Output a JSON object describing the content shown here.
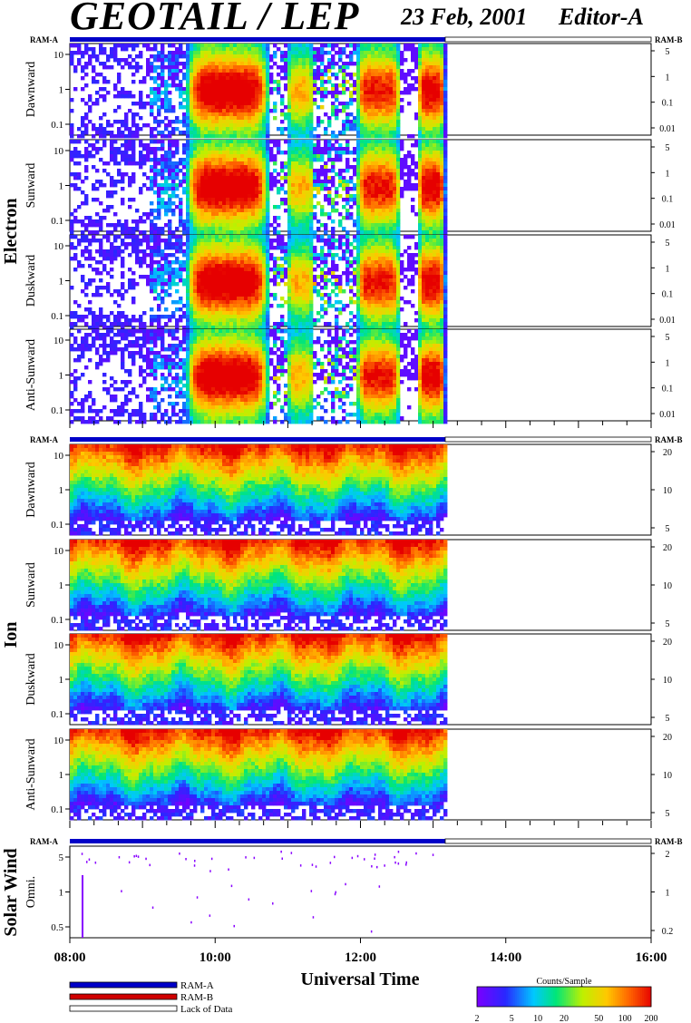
{
  "header": {
    "title": "GEOTAIL / LEP",
    "date": "23 Feb, 2001",
    "editor": "Editor-A"
  },
  "chart_data": {
    "type": "heatmap",
    "x_axis": {
      "title": "Universal Time",
      "range": [
        "08:00",
        "16:00"
      ],
      "tick_labels": [
        "08:00",
        "10:00",
        "12:00",
        "14:00",
        "16:00"
      ],
      "data_end": "13:10"
    },
    "mode_bar": {
      "left_label": "RAM-A",
      "right_label": "RAM-B"
    },
    "groups": [
      {
        "name": "Electron",
        "left_ticks": [
          "10",
          "1",
          "0.1"
        ],
        "right_ticks": [
          "5",
          "1",
          "0.1",
          "0.01"
        ],
        "panels": [
          {
            "name": "Dawnward"
          },
          {
            "name": "Sunward"
          },
          {
            "name": "Duskward"
          },
          {
            "name": "Anti-Sunward"
          }
        ]
      },
      {
        "name": "Ion",
        "left_ticks": [
          "10",
          "1",
          "0.1"
        ],
        "right_ticks": [
          "20",
          "10",
          "5"
        ],
        "panels": [
          {
            "name": "Dawnward"
          },
          {
            "name": "Sunward"
          },
          {
            "name": "Duskward"
          },
          {
            "name": "Anti-Sunward"
          }
        ]
      },
      {
        "name": "Solar Wind",
        "left_ticks": [
          "5",
          "1",
          "0.5"
        ],
        "right_ticks": [
          "2",
          "1",
          "0.2"
        ],
        "panels": [
          {
            "name": "Omni."
          }
        ]
      }
    ],
    "legend": [
      {
        "label": "RAM-A",
        "color": "#0000c8"
      },
      {
        "label": "RAM-B",
        "color": "#d00000"
      },
      {
        "label": "Lack of Data",
        "color": "#ffffff"
      }
    ],
    "colorbar": {
      "title": "Counts/Sample",
      "ticks": [
        "2",
        "5",
        "10",
        "20",
        "50",
        "100",
        "200"
      ],
      "range": [
        2,
        200
      ],
      "scale": "log"
    }
  }
}
